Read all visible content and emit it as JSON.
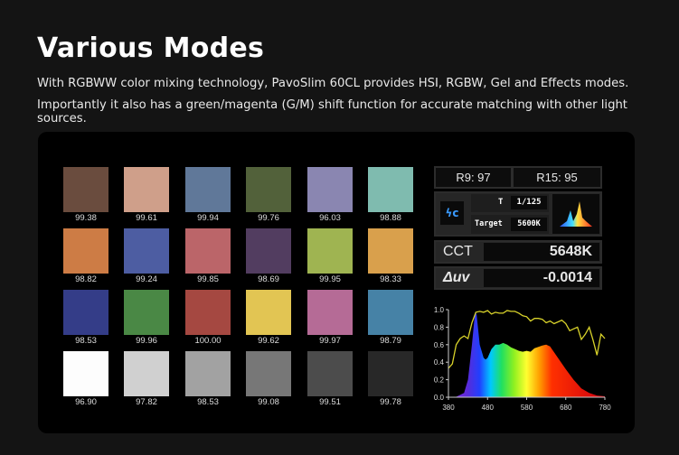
{
  "header": {
    "title": "Various Modes",
    "lines": [
      "With RGBWW color mixing technology, PavoSlim 60CL provides HSI, RGBW, Gel and Effects modes.",
      "Importantly it also has a green/magenta (G/M) shift function for accurate matching with other light sources."
    ]
  },
  "swatches": [
    {
      "color": "#6a4c3e",
      "value": "99.38"
    },
    {
      "color": "#cf9f8a",
      "value": "99.61"
    },
    {
      "color": "#607899",
      "value": "99.94"
    },
    {
      "color": "#52613a",
      "value": "99.76"
    },
    {
      "color": "#8a86b1",
      "value": "96.03"
    },
    {
      "color": "#7fbbaf",
      "value": "98.88"
    },
    {
      "color": "#cd7c45",
      "value": "98.82"
    },
    {
      "color": "#4d5da2",
      "value": "99.24"
    },
    {
      "color": "#bb6569",
      "value": "99.85"
    },
    {
      "color": "#523d60",
      "value": "98.69"
    },
    {
      "color": "#9fb451",
      "value": "99.95"
    },
    {
      "color": "#d9a04c",
      "value": "98.33"
    },
    {
      "color": "#343d88",
      "value": "98.53"
    },
    {
      "color": "#4a8845",
      "value": "99.96"
    },
    {
      "color": "#a54841",
      "value": "100.00"
    },
    {
      "color": "#e2c553",
      "value": "99.62"
    },
    {
      "color": "#b56b96",
      "value": "99.97"
    },
    {
      "color": "#4682a6",
      "value": "98.79"
    },
    {
      "color": "#fdfdfd",
      "value": "96.90"
    },
    {
      "color": "#d0d0d0",
      "value": "97.82"
    },
    {
      "color": "#a2a2a2",
      "value": "98.53"
    },
    {
      "color": "#777777",
      "value": "99.08"
    },
    {
      "color": "#4c4c4c",
      "value": "99.51"
    },
    {
      "color": "#282828",
      "value": "99.78"
    }
  ],
  "meter": {
    "r9": "R9: 97",
    "r15": "R15: 95",
    "mode_icon": "flash-c-icon",
    "t_label": "T",
    "t_value": "1/125",
    "target_label": "Target",
    "target_value": "5600K",
    "cct_label": "CCT",
    "cct_value": "5648K",
    "duv_label": "Δuv",
    "duv_value": "-0.0014"
  },
  "chart_data": {
    "type": "area",
    "xlim": [
      380,
      780
    ],
    "ylim": [
      0,
      1
    ],
    "xticks": [
      "380",
      "480",
      "580",
      "680",
      "780"
    ],
    "yticks": [
      "0.0",
      "0.2",
      "0.4",
      "0.6",
      "0.8",
      "1.0"
    ],
    "spectrum": {
      "x": [
        380,
        400,
        420,
        430,
        440,
        448,
        452,
        460,
        470,
        475,
        480,
        490,
        500,
        510,
        520,
        530,
        540,
        550,
        560,
        570,
        580,
        590,
        600,
        620,
        630,
        640,
        660,
        680,
        700,
        720,
        740,
        760,
        780
      ],
      "y": [
        0,
        0.005,
        0.05,
        0.2,
        0.6,
        0.97,
        0.95,
        0.6,
        0.45,
        0.43,
        0.45,
        0.55,
        0.6,
        0.6,
        0.62,
        0.6,
        0.57,
        0.55,
        0.53,
        0.52,
        0.53,
        0.52,
        0.56,
        0.59,
        0.6,
        0.58,
        0.45,
        0.32,
        0.2,
        0.1,
        0.05,
        0.02,
        0.01
      ]
    },
    "line": {
      "color": "#d8d22a",
      "x": [
        380,
        390,
        400,
        410,
        420,
        430,
        440,
        450,
        460,
        470,
        480,
        490,
        500,
        510,
        520,
        530,
        540,
        550,
        560,
        570,
        580,
        590,
        600,
        610,
        620,
        630,
        640,
        650,
        660,
        670,
        680,
        690,
        700,
        710,
        720,
        730,
        740,
        750,
        760,
        770,
        780
      ],
      "y": [
        0.33,
        0.38,
        0.6,
        0.67,
        0.7,
        0.67,
        0.85,
        0.97,
        0.98,
        0.97,
        0.99,
        0.95,
        0.97,
        0.96,
        0.96,
        0.99,
        0.98,
        0.98,
        0.96,
        0.93,
        0.92,
        0.87,
        0.9,
        0.9,
        0.89,
        0.85,
        0.87,
        0.84,
        0.86,
        0.88,
        0.84,
        0.76,
        0.78,
        0.8,
        0.66,
        0.72,
        0.8,
        0.65,
        0.48,
        0.72,
        0.67
      ]
    }
  }
}
